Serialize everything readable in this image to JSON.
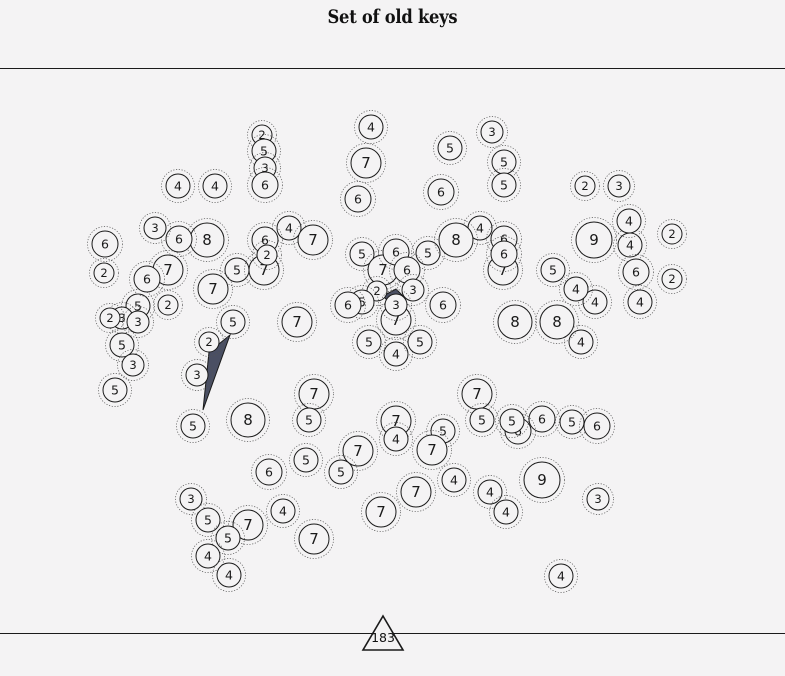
{
  "title": "Set of old keys",
  "page_number": "183",
  "key_counts": [
    2,
    5,
    3,
    6,
    4,
    7,
    6,
    4,
    4,
    5,
    3,
    5,
    5,
    6,
    4,
    2,
    3,
    6,
    8,
    6,
    4,
    7,
    9,
    4,
    3,
    4,
    6,
    5,
    7,
    6,
    6,
    5,
    8,
    4,
    2,
    7,
    5,
    6,
    2,
    2,
    7,
    5,
    7,
    6,
    6,
    5,
    7,
    2,
    4,
    5,
    6,
    5,
    2,
    3,
    3,
    7,
    5,
    3,
    6,
    2,
    3,
    6,
    7,
    4,
    8,
    8,
    4,
    5,
    5,
    4,
    3,
    3,
    2,
    2,
    5,
    8,
    5,
    7,
    7,
    7,
    5,
    5,
    5,
    6,
    5,
    6,
    7,
    4,
    6,
    7,
    5,
    4,
    7,
    5,
    9,
    6,
    4,
    4,
    3,
    3,
    5,
    7,
    7,
    7,
    5,
    5,
    4,
    4,
    4,
    4
  ],
  "colors": {
    "background": "#f4f3f4",
    "ink": "#1a1a1a",
    "key_fill": "#4a4f63"
  }
}
